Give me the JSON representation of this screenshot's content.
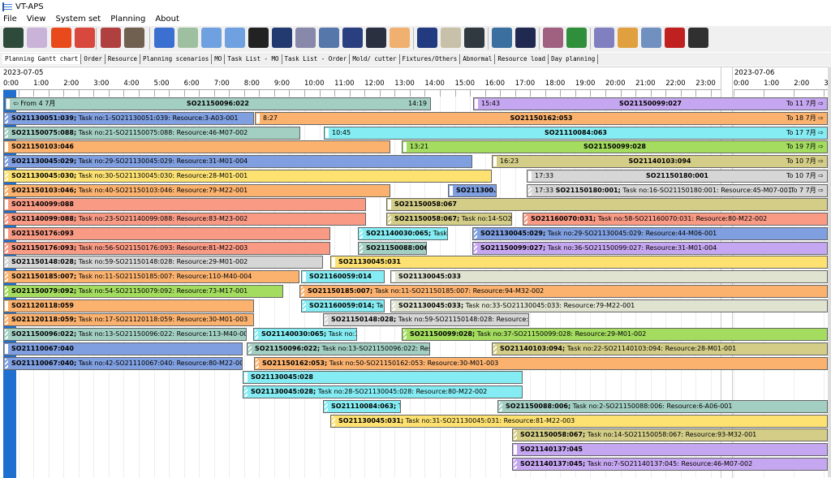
{
  "window": {
    "title": "VT-APS"
  },
  "menu": [
    "File",
    "View",
    "System set",
    "Planning",
    "About"
  ],
  "toolbar": {
    "icons": [
      "refresh-icon",
      "teapot-icon",
      "chart-icon",
      "folder-icon",
      "staff-list-icon",
      "gears-icon",
      "gantt-icon",
      "report-icon",
      "zoom-in-icon",
      "zoom-out-icon",
      "calendar-icon",
      "print-icon",
      "machine-icon",
      "grid-icon",
      "dashboard-icon",
      "shield-icon",
      "hand-icon",
      "scanner-icon",
      "clipboard-add-icon",
      "save-export-icon",
      "folder-open-icon",
      "settings-icon",
      "layout-icon",
      "excel-icon",
      "tools-icon",
      "clock-icon",
      "layout-refresh-icon",
      "stack-icon",
      "floppy-icon"
    ]
  },
  "tabs": [
    "Planning Gantt chart",
    "Order",
    "Resource",
    "Planning  scenarios",
    "MO",
    "Task List - MO",
    "Task List - Order",
    "Mold/ cutter",
    "Fixtures/Others",
    "Abnormal",
    "Resource load",
    "Day planning"
  ],
  "gantt": {
    "dates": [
      "2023-07-05",
      "2023-07-06"
    ],
    "hours_day1": [
      "0:00",
      "1:00",
      "2:00",
      "3:00",
      "4:00",
      "5:00",
      "6:00",
      "7:00",
      "8:00",
      "9:00",
      "10:00",
      "11:00",
      "12:00",
      "13:00",
      "14:00",
      "15:00",
      "16:00",
      "17:00",
      "18:00",
      "19:00",
      "20:00",
      "21:00",
      "22:00",
      "23:00"
    ],
    "hours_day2": [
      "0:00",
      "1:00",
      "2:00",
      "3"
    ],
    "colors": {
      "teal": "#a3cfc3",
      "purple": "#c5a6f0",
      "blue": "#7f9fe0",
      "orange": "#fbb26f",
      "cyan": "#84ecf2",
      "green": "#a3dc5e",
      "khaki": "#d4cd87",
      "yellow": "#fde272",
      "gray": "#d6d6d6",
      "salmon": "#f99a85",
      "beige": "#e1e3d1",
      "strip": "#1f6fd0"
    },
    "rows": [
      [
        {
          "color": "teal",
          "start": "⇦ From 4 7月",
          "center": "SO21150096:022",
          "end": "14:19"
        },
        {
          "color": "purple",
          "start": "15:43",
          "center": "SO21150099:027",
          "end": "To 11 7月 ⇨"
        }
      ],
      [
        {
          "color": "blue",
          "bold": "SO21130051:039;",
          "text": " Task no:1-SO21130051:039: Resource:3-A03-001"
        },
        {
          "color": "orange",
          "start": "8:27",
          "center": "SO21150162:053",
          "end": "To 18 7月 ⇨"
        }
      ],
      [
        {
          "color": "teal",
          "bold": "SO21150075:088;",
          "text": " Task no:21-SO21150075:088: Resource:46-M07-002"
        },
        {
          "color": "cyan",
          "start": "10:45",
          "center": "SO21110084:063",
          "end": "To 17 7月 ⇨"
        }
      ],
      [
        {
          "color": "orange",
          "bold": "SO21150103:046"
        },
        {
          "color": "green",
          "start": "13:21",
          "center": "SO21150099:028",
          "end": "To 19 7月 ⇨"
        }
      ],
      [
        {
          "color": "blue",
          "bold": "SO21130045:029;",
          "text": " Task no:29-SO21130045:029: Resource:31-M01-004"
        },
        {
          "color": "khaki",
          "start": "16:23",
          "center": "SO21140103:094",
          "end": "To 10 7月 ⇨"
        }
      ],
      [
        {
          "color": "yellow",
          "bold": "SO21130045:030;",
          "text": " Task no:30-SO21130045:030: Resource:28-M01-001"
        },
        {
          "color": "gray",
          "start": "17:33",
          "center": "SO21150180:001",
          "end": "To 10 7月 ⇨"
        }
      ],
      [
        {
          "color": "orange",
          "bold": "SO21150103:046;",
          "text": " Task no:40-SO21150103:046: Resource:79-M22-001"
        },
        {
          "color": "blue",
          "bold": "SO211300..."
        },
        {
          "color": "gray",
          "start": "17:33  ",
          "bold": "SO21150180:001;",
          "text": " Task no:16-SO21150180:001: Resource:45-M07-001",
          "end": "To 7 7月 ⇨"
        }
      ],
      [
        {
          "color": "salmon",
          "bold": "SO21140099:088"
        },
        {
          "color": "khaki",
          "bold": "SO21150058:067"
        }
      ],
      [
        {
          "color": "salmon",
          "bold": "SO21140099:088;",
          "text": " Task no:23-SO21140099:088: Resource:83-M23-002"
        },
        {
          "color": "khaki",
          "bold": "SO21150058:067;",
          "text": " Task no:14-SO21..."
        },
        {
          "color": "salmon",
          "bold": "SO21160070:031;",
          "text": " Task no:58-SO21160070:031: Resource:80-M22-002"
        }
      ],
      [
        {
          "color": "salmon",
          "bold": "SO21150176:093"
        },
        {
          "color": "cyan",
          "bold": "SO21140030:065;",
          "text": " Task..."
        },
        {
          "color": "blue",
          "bold": "SO21130045:029;",
          "text": " Task no:29-SO21130045:029: Resource:44-M06-001"
        }
      ],
      [
        {
          "color": "salmon",
          "bold": "SO21150176:093;",
          "text": " Task no:56-SO21150176:093: Resource:81-M22-003"
        },
        {
          "color": "teal",
          "bold": "SO21150088:006;",
          "text": " "
        },
        {
          "color": "purple",
          "bold": "SO21150099:027;",
          "text": " Task no:36-SO21150099:027: Resource:31-M01-004"
        }
      ],
      [
        {
          "color": "gray",
          "bold": "SO21150148:028;",
          "text": " Task no:59-SO21150148:028: Resource:29-M01-002"
        },
        {
          "color": "yellow",
          "bold": "SO21130045:031"
        }
      ],
      [
        {
          "color": "orange",
          "bold": "SO21150185:007;",
          "text": " Task no:11-SO21150185:007: Resource:110-M40-004"
        },
        {
          "color": "cyan",
          "bold": "SO21160059:014"
        },
        {
          "color": "beige",
          "bold": "SO21130045:033"
        }
      ],
      [
        {
          "color": "green",
          "bold": "SO21150079:092;",
          "text": " Task no:54-SO21150079:092: Resource:73-M17-001"
        },
        {
          "color": "orange",
          "bold": "SO21150185:007;",
          "text": " Task no:11-SO21150185:007: Resource:94-M32-002"
        }
      ],
      [
        {
          "color": "orange",
          "bold": "SO21120118:059"
        },
        {
          "color": "cyan",
          "bold": "SO21160059:014;",
          "text": " Ta..."
        },
        {
          "color": "beige",
          "bold": "SO21130045:033;",
          "text": " Task no:33-SO21130045:033: Resource:79-M22-001"
        }
      ],
      [
        {
          "color": "orange",
          "bold": "SO21120118:059;",
          "text": " Task no:17-SO21120118:059: Resource:30-M01-003"
        },
        {
          "color": "gray",
          "bold": "SO21150148:028;",
          "text": " Task no:59-SO21150148:028: Resource:82-..."
        }
      ],
      [
        {
          "color": "teal",
          "bold": "SO21150096:022;",
          "text": " Task no:13-SO21150096:022: Resource:113-M40-007"
        },
        {
          "color": "cyan",
          "bold": "SO21140030:065;",
          "text": " Task no:3..."
        },
        {
          "color": "green",
          "bold": "SO21150099:028;",
          "text": " Task no:37-SO21150099:028: Resource:29-M01-002"
        }
      ],
      [
        {
          "color": "blue",
          "bold": "SO21110067:040"
        },
        {
          "color": "teal",
          "bold": "SO21150096:022;",
          "text": " Task no:13-SO21150096:022: Resou..."
        },
        {
          "color": "khaki",
          "bold": "SO21140103:094;",
          "text": " Task no:22-SO21140103:094: Resource:28-M01-001"
        }
      ],
      [
        {
          "color": "blue",
          "bold": "SO21110067:040;",
          "text": " Task no:42-SO21110067:040: Resource:80-M22-002"
        },
        {
          "color": "orange",
          "bold": "SO21150162:053;",
          "text": " Task no:50-SO21150162:053: Resource:30-M01-003"
        }
      ],
      [
        {
          "color": "cyan",
          "bold": "SO21130045:028"
        }
      ],
      [
        {
          "color": "cyan",
          "bold": "SO21130045:028;",
          "text": " Task no:28-SO21130045:028: Resource:80-M22-002"
        }
      ],
      [
        {
          "color": "cyan",
          "bold": "SO21110084:063;",
          "text": " T..."
        },
        {
          "color": "teal",
          "bold": "SO21150088:006;",
          "text": " Task no:2-SO21150088:006: Resource:6-A06-001"
        }
      ],
      [
        {
          "color": "yellow",
          "bold": "SO21130045:031;",
          "text": " Task no:31-SO21130045:031: Resource:81-M22-003"
        }
      ],
      [
        {
          "color": "khaki",
          "bold": "SO21150058:067;",
          "text": " Task no:14-SO21150058:067: Resource:93-M32-001"
        }
      ],
      [
        {
          "color": "purple",
          "bold": "SO21140137:045"
        }
      ],
      [
        {
          "color": "purple",
          "bold": "SO21140137:045;",
          "text": " Task no:7-SO21140137:045: Resource:46-M07-002"
        }
      ]
    ]
  }
}
